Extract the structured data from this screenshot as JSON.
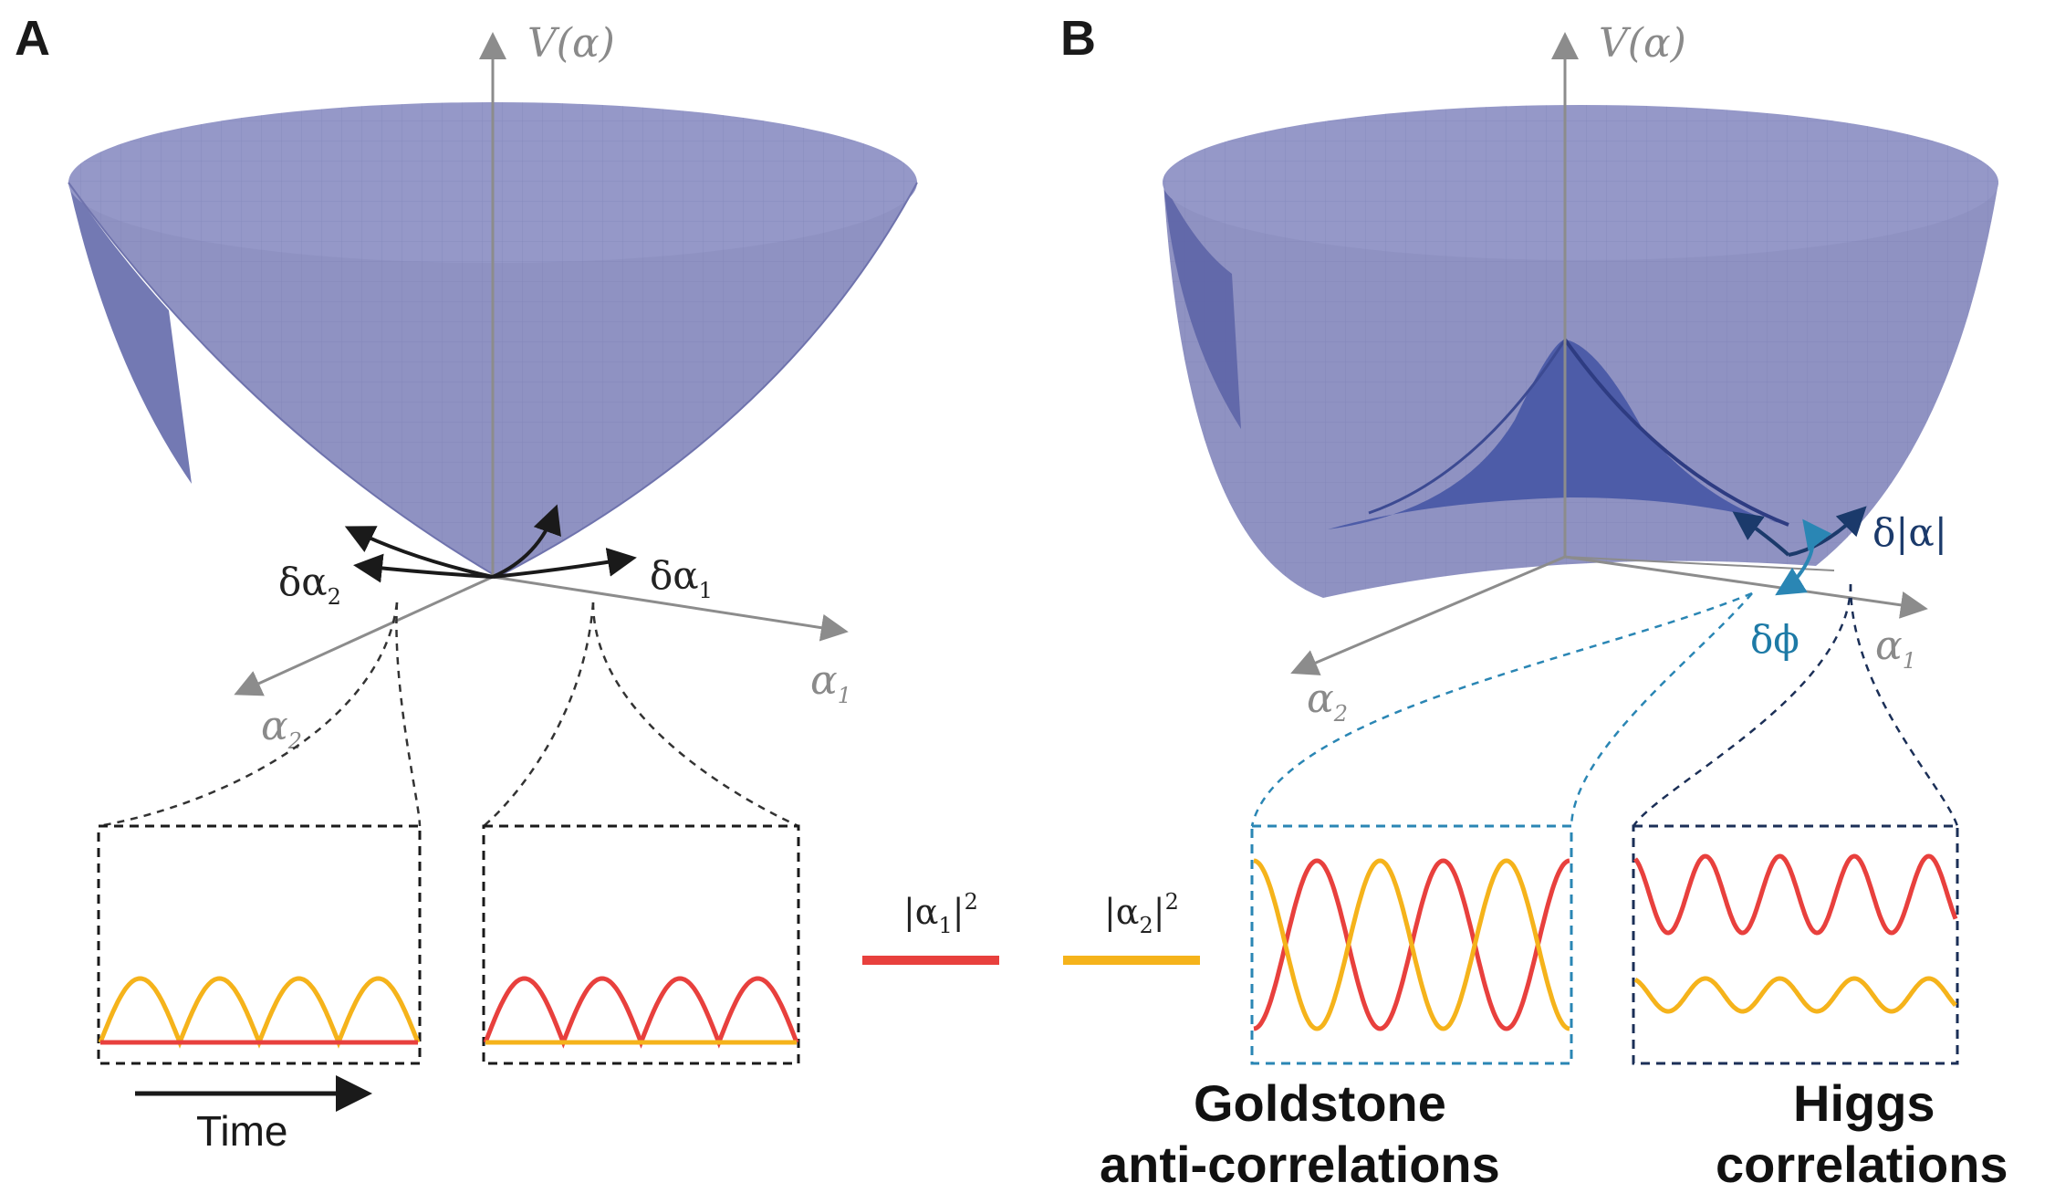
{
  "panels": {
    "a": {
      "letter": "A",
      "v_label": "V(α)",
      "axis1_label": "α",
      "axis1_sub": "1",
      "axis2_label": "α",
      "axis2_sub": "2",
      "d1_label": "δα",
      "d1_sub": "1",
      "d2_label": "δα",
      "d2_sub": "2",
      "time_label": "Time"
    },
    "b": {
      "letter": "B",
      "v_label": "V(α)",
      "axis1_label": "α",
      "axis1_sub": "1",
      "axis2_label": "α",
      "axis2_sub": "2",
      "amp_label": "δ|α|",
      "phase_label": "δϕ",
      "goldstone_line1": "Goldstone",
      "goldstone_line2": "anti-correlations",
      "higgs_line1": "Higgs",
      "higgs_line2": "correlations"
    }
  },
  "legend": {
    "red_label": "|α",
    "red_sub": "1",
    "red_sup": "2",
    "yellow_label": "|α",
    "yellow_sub": "2",
    "yellow_sup": "2"
  },
  "colors": {
    "surface": "#8f92c2",
    "surface_dark": "#5a62a6",
    "axis": "#8c8c8c",
    "red_trace": "#e8403d",
    "yellow_trace": "#f5b31b",
    "black_arrow": "#1a1a1a",
    "goldstone_box": "#2a86b4",
    "higgs_box": "#1b2f57"
  }
}
